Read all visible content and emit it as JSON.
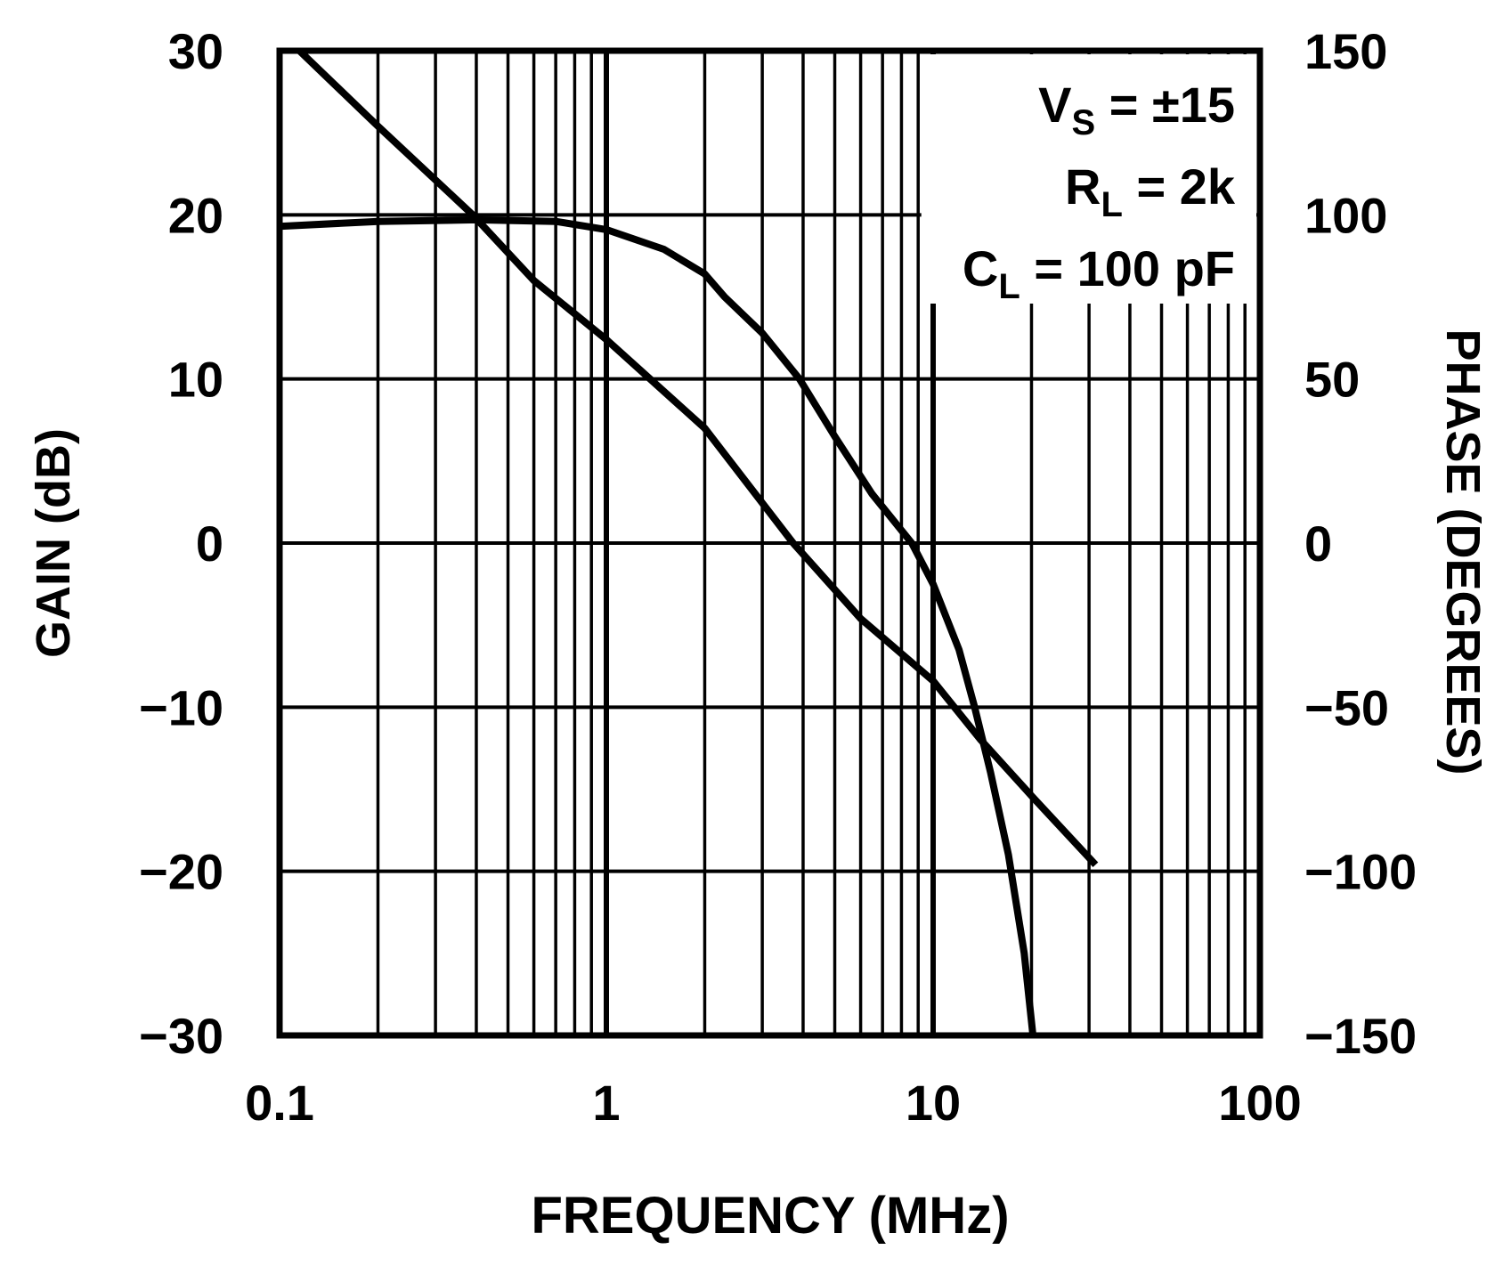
{
  "chart_data": {
    "type": "line",
    "xlabel": "FREQUENCY (MHz)",
    "ylabel": "GAIN (dB)",
    "y2label": "PHASE (DEGREES)",
    "xscale": "log",
    "xlim": [
      0.1,
      100
    ],
    "ylim": [
      -30,
      30
    ],
    "y2lim": [
      -150,
      150
    ],
    "grid": true,
    "x_ticks": [
      "0.1",
      "1",
      "10",
      "100"
    ],
    "y_ticks": [
      "30",
      "20",
      "10",
      "0",
      "−10",
      "−20",
      "−30"
    ],
    "y2_ticks": [
      "150",
      "100",
      "50",
      "0",
      "−50",
      "−100",
      "−150"
    ],
    "annotation": [
      {
        "main": "V",
        "sub": "S",
        "rest": " = ±15"
      },
      {
        "main": "R",
        "sub": "L",
        "rest": " = 2k"
      },
      {
        "main": "C",
        "sub": "L",
        "rest": " = 100 pF"
      }
    ],
    "series": [
      {
        "axis": "left",
        "x": [
          0.1,
          0.2,
          0.4,
          0.7,
          1,
          1.5,
          2,
          2.3,
          3,
          3.9,
          5,
          6.5,
          8.6,
          10,
          12,
          13.4,
          15,
          17,
          19,
          20.2
        ],
        "y": [
          19.3,
          19.6,
          19.7,
          19.6,
          19.1,
          17.9,
          16.4,
          15,
          12.8,
          10,
          6.5,
          3,
          0,
          -2.5,
          -6.5,
          -10,
          -14,
          -19,
          -25,
          -30
        ]
      },
      {
        "axis": "right",
        "x": [
          0.115,
          0.2,
          0.39,
          0.6,
          1,
          2,
          3.73,
          6,
          10,
          14,
          20,
          31.4
        ],
        "y": [
          150,
          127,
          100,
          80,
          62,
          35,
          0,
          -23,
          -42,
          -60,
          -77,
          -98
        ]
      }
    ]
  }
}
